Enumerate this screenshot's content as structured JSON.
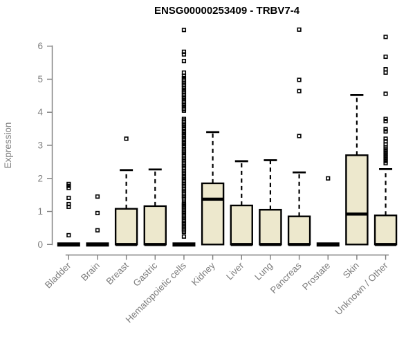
{
  "chart_data": {
    "type": "boxplot",
    "title": "ENSG00000253409 - TRBV7-4",
    "ylabel": "Expression",
    "xlabel": "",
    "ylim": [
      0,
      6
    ],
    "yticks": [
      0,
      1,
      2,
      3,
      4,
      5,
      6
    ],
    "grid": false,
    "legend": "none",
    "box_fill": "#EDE8CD",
    "box_stroke": "#000000",
    "axis_color": "#7D7D7D",
    "text_color": "#7D7D7D",
    "title_color": "#000000",
    "categories": [
      "Bladder",
      "Brain",
      "Breast",
      "Gastric",
      "Hematopoietic cells",
      "Kidney",
      "Liver",
      "Lung",
      "Pancreas",
      "Prostate",
      "Skin",
      "Unknown / Other"
    ],
    "series": [
      {
        "label": "Bladder",
        "min": 0,
        "q1": 0,
        "median": 0,
        "q3": 0,
        "max": 0,
        "outliers": [
          1.83,
          1.77,
          1.71,
          1.41,
          1.22,
          1.14,
          0.28
        ]
      },
      {
        "label": "Brain",
        "min": 0,
        "q1": 0,
        "median": 0,
        "q3": 0,
        "max": 0,
        "outliers": [
          1.45,
          0.95,
          0.43
        ]
      },
      {
        "label": "Breast",
        "min": 0,
        "q1": 0,
        "median": 0,
        "q3": 1.08,
        "max": 2.25,
        "outliers": [
          3.2
        ]
      },
      {
        "label": "Gastric",
        "min": 0,
        "q1": 0,
        "median": 0,
        "q3": 1.16,
        "max": 2.27,
        "outliers": []
      },
      {
        "label": "Hematopoietic cells",
        "min": 0,
        "q1": 0,
        "median": 0,
        "q3": 0,
        "max": 0,
        "outliers": [
          0.24,
          0.38,
          0.43,
          0.48,
          0.52,
          0.57,
          0.62,
          0.66,
          0.71,
          0.76,
          0.81,
          0.85,
          0.9,
          0.95,
          0.99,
          1.04,
          1.09,
          1.13,
          1.18,
          1.22,
          1.26,
          1.37,
          1.42,
          1.47,
          1.52,
          1.57,
          1.62,
          1.67,
          1.72,
          1.77,
          1.82,
          1.87,
          1.92,
          1.97,
          2.02,
          2.06,
          2.12,
          2.17,
          2.22,
          2.27,
          2.32,
          2.37,
          2.42,
          2.47,
          2.52,
          2.57,
          2.62,
          2.67,
          2.72,
          2.78,
          2.83,
          2.88,
          2.94,
          2.99,
          3.05,
          3.1,
          3.16,
          3.21,
          3.27,
          3.32,
          3.38,
          3.43,
          3.49,
          3.54,
          3.6,
          3.65,
          3.7,
          3.75,
          3.8,
          4.05,
          4.1,
          4.15,
          4.21,
          4.26,
          4.31,
          4.36,
          4.42,
          4.47,
          4.52,
          4.57,
          4.62,
          4.67,
          4.73,
          4.78,
          4.83,
          4.88,
          4.93,
          4.98,
          5.03,
          5.1,
          5.2,
          5.55,
          5.75,
          5.83,
          6.49
        ]
      },
      {
        "label": "Kidney",
        "min": 0,
        "q1": 0,
        "median": 1.37,
        "q3": 1.85,
        "max": 3.4,
        "outliers": []
      },
      {
        "label": "Liver",
        "min": 0,
        "q1": 0,
        "median": 0,
        "q3": 1.18,
        "max": 2.52,
        "outliers": []
      },
      {
        "label": "Lung",
        "min": 0,
        "q1": 0,
        "median": 0,
        "q3": 1.05,
        "max": 2.55,
        "outliers": []
      },
      {
        "label": "Pancreas",
        "min": 0,
        "q1": 0,
        "median": 0,
        "q3": 0.85,
        "max": 2.18,
        "outliers": [
          6.5,
          4.98,
          4.64,
          3.28
        ]
      },
      {
        "label": "Prostate",
        "min": 0,
        "q1": 0,
        "median": 0,
        "q3": 0,
        "max": 0,
        "outliers": [
          2.0
        ]
      },
      {
        "label": "Skin",
        "min": 0,
        "q1": 0,
        "median": 0.92,
        "q3": 2.7,
        "max": 4.52,
        "outliers": []
      },
      {
        "label": "Unknown / Other",
        "min": 0,
        "q1": 0,
        "median": 0,
        "q3": 0.88,
        "max": 2.28,
        "outliers": [
          6.28,
          5.68,
          5.3,
          5.2,
          4.56,
          3.8,
          3.73,
          3.49,
          3.42,
          3.2,
          3.12,
          3.03,
          2.94,
          2.88,
          2.82,
          2.76,
          2.7,
          2.64,
          2.58,
          2.52,
          2.46
        ]
      }
    ]
  }
}
